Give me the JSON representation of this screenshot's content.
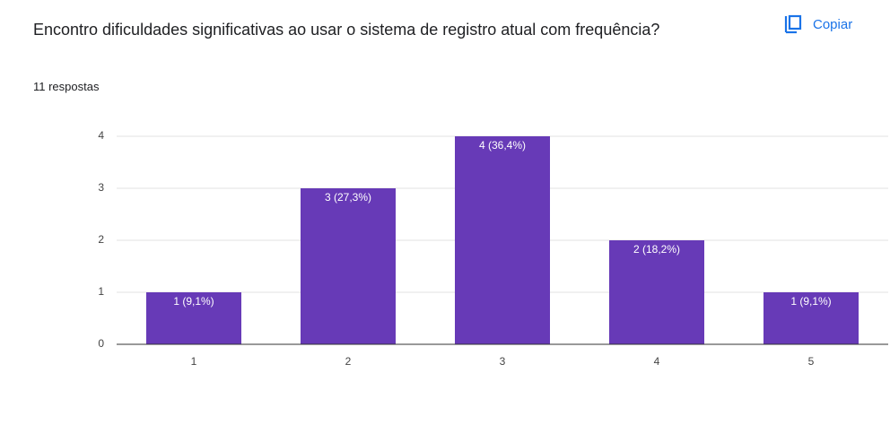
{
  "header": {
    "title": "Encontro dificuldades significativas ao usar o sistema de registro atual com frequência?",
    "copy_button": "Copiar",
    "responses": "11 respostas"
  },
  "chart_data": {
    "type": "bar",
    "categories": [
      "1",
      "2",
      "3",
      "4",
      "5"
    ],
    "values": [
      1,
      3,
      4,
      2,
      1
    ],
    "value_labels": [
      "1 (9,1%)",
      "3 (27,3%)",
      "4 (36,4%)",
      "2 (18,2%)",
      "1 (9,1%)"
    ],
    "color": "#673ab7",
    "ylim": [
      0,
      4
    ],
    "yticks": [
      0,
      1,
      2,
      3,
      4
    ],
    "grid": true
  }
}
